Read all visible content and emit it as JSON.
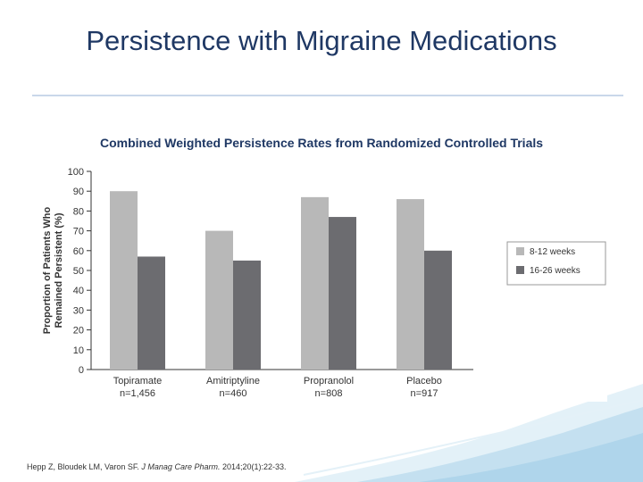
{
  "slide": {
    "title": "Persistence with Migraine Medications"
  },
  "chart_heading": "Combined Weighted Persistence Rates from Randomized Controlled Trials",
  "citation": {
    "authors": "Hepp Z, Bloudek LM, Varon SF.",
    "journal": "J Manag Care Pharm.",
    "details": "2014;20(1):22-33."
  },
  "colors": {
    "title": "#1f3864",
    "series_light": "#b8b8b8",
    "series_dark": "#6c6c70",
    "wave": "#bcdcee"
  },
  "chart_data": {
    "type": "bar",
    "title": "Combined Weighted Persistence Rates from Randomized Controlled Trials",
    "ylabel": "Proportion of Patients Who Remained Persistent (%)",
    "ylabel_lines": [
      "Proportion of Patients Who",
      "Remained Persistent (%)"
    ],
    "xlabel": "",
    "ylim": [
      0,
      100
    ],
    "yticks": [
      0,
      10,
      20,
      30,
      40,
      50,
      60,
      70,
      80,
      90,
      100
    ],
    "categories": [
      "Topiramate",
      "Amitriptyline",
      "Propranolol",
      "Placebo"
    ],
    "category_n": [
      "n=1,456",
      "n=460",
      "n=808",
      "n=917"
    ],
    "series": [
      {
        "name": "8-12 weeks",
        "values": [
          90,
          70,
          87,
          86
        ]
      },
      {
        "name": "16-26 weeks",
        "values": [
          57,
          55,
          77,
          60
        ]
      }
    ],
    "legend_position": "right",
    "grid": false
  }
}
